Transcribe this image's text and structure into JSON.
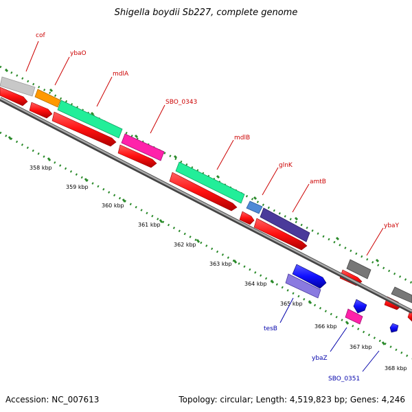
{
  "title": "Shigella boydii Sb227, complete genome",
  "accession": "Accession: NC_007613",
  "summary": "Topology: circular; Length: 4,519,823 bp; Genes: 4,246",
  "colors": {
    "forward_label": "#cc0000",
    "reverse_label": "#0000aa",
    "cds_forward": "#ff1a1a",
    "cds_reverse": "#1a1aff",
    "backbone": "#888888",
    "ticks": "#2a8a2a"
  },
  "kbp_labels": [
    "358 kbp",
    "359 kbp",
    "360 kbp",
    "361 kbp",
    "362 kbp",
    "363 kbp",
    "364 kbp",
    "365 kbp",
    "366 kbp",
    "367 kbp",
    "368 kbp"
  ],
  "genes_forward": [
    "cof",
    "ybaO",
    "mdlA",
    "SBO_0343",
    "mdlB",
    "glnK",
    "amtB",
    "ybaY"
  ],
  "genes_reverse": [
    "tesB",
    "ybaZ",
    "SBO_0351"
  ]
}
